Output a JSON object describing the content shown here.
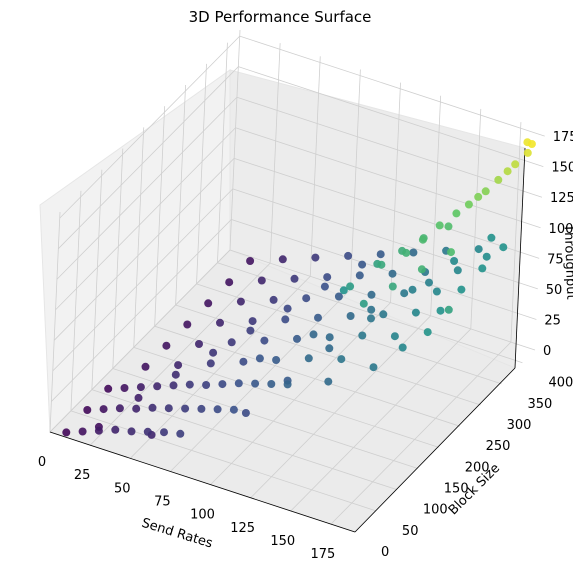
{
  "chart_data": {
    "type": "scatter",
    "projection": "3d",
    "title": "3D Performance Surface",
    "xlabel": "Send Rates",
    "ylabel": "Block Size",
    "zlabel": "Throughput",
    "xlim": [
      0,
      190
    ],
    "ylim": [
      0,
      430
    ],
    "zlim": [
      0,
      180
    ],
    "xticks": [
      "0",
      "25",
      "50",
      "75",
      "100",
      "125",
      "150",
      "175"
    ],
    "yticks": [
      "0",
      "50",
      "100",
      "150",
      "200",
      "250",
      "300",
      "350",
      "400"
    ],
    "zticks": [
      "0",
      "25",
      "50",
      "75",
      "100",
      "125",
      "150",
      "175"
    ],
    "colormap": "viridis",
    "color_by": "Throughput",
    "grid": true,
    "points": [
      [
        10,
        0,
        4
      ],
      [
        20,
        0,
        9
      ],
      [
        30,
        0,
        14
      ],
      [
        40,
        0,
        19
      ],
      [
        50,
        0,
        22
      ],
      [
        60,
        0,
        26
      ],
      [
        70,
        0,
        30
      ],
      [
        80,
        0,
        33
      ],
      [
        10,
        50,
        5
      ],
      [
        20,
        50,
        10
      ],
      [
        30,
        50,
        15
      ],
      [
        40,
        50,
        19
      ],
      [
        50,
        50,
        24
      ],
      [
        60,
        50,
        28
      ],
      [
        70,
        50,
        32
      ],
      [
        80,
        50,
        36
      ],
      [
        90,
        50,
        40
      ],
      [
        100,
        50,
        44
      ],
      [
        10,
        100,
        5
      ],
      [
        20,
        100,
        10
      ],
      [
        30,
        100,
        15
      ],
      [
        40,
        100,
        20
      ],
      [
        50,
        100,
        25
      ],
      [
        60,
        100,
        30
      ],
      [
        70,
        100,
        34
      ],
      [
        80,
        100,
        39
      ],
      [
        90,
        100,
        44
      ],
      [
        100,
        100,
        48
      ],
      [
        110,
        100,
        52
      ],
      [
        120,
        100,
        56
      ],
      [
        20,
        150,
        10
      ],
      [
        40,
        150,
        20
      ],
      [
        60,
        150,
        30
      ],
      [
        80,
        150,
        40
      ],
      [
        100,
        150,
        50
      ],
      [
        120,
        150,
        60
      ],
      [
        140,
        150,
        68
      ],
      [
        20,
        200,
        10
      ],
      [
        40,
        200,
        20
      ],
      [
        60,
        200,
        30
      ],
      [
        80,
        200,
        40
      ],
      [
        100,
        200,
        50
      ],
      [
        120,
        200,
        60
      ],
      [
        140,
        200,
        70
      ],
      [
        160,
        200,
        78
      ],
      [
        20,
        250,
        10
      ],
      [
        40,
        250,
        20
      ],
      [
        60,
        250,
        30
      ],
      [
        80,
        250,
        40
      ],
      [
        100,
        250,
        50
      ],
      [
        120,
        250,
        60
      ],
      [
        140,
        250,
        70
      ],
      [
        160,
        250,
        80
      ],
      [
        175,
        250,
        88
      ],
      [
        20,
        300,
        10
      ],
      [
        40,
        300,
        20
      ],
      [
        60,
        300,
        30
      ],
      [
        80,
        300,
        40
      ],
      [
        100,
        300,
        50
      ],
      [
        120,
        300,
        60
      ],
      [
        140,
        300,
        70
      ],
      [
        160,
        300,
        80
      ],
      [
        175,
        300,
        88
      ],
      [
        20,
        350,
        10
      ],
      [
        40,
        350,
        20
      ],
      [
        60,
        350,
        30
      ],
      [
        80,
        350,
        40
      ],
      [
        100,
        350,
        50
      ],
      [
        120,
        350,
        60
      ],
      [
        140,
        350,
        70
      ],
      [
        160,
        350,
        80
      ],
      [
        175,
        350,
        88
      ],
      [
        20,
        400,
        10
      ],
      [
        40,
        400,
        20
      ],
      [
        60,
        400,
        30
      ],
      [
        80,
        400,
        40
      ],
      [
        100,
        400,
        50
      ],
      [
        120,
        400,
        60
      ],
      [
        140,
        400,
        70
      ],
      [
        160,
        400,
        80
      ],
      [
        175,
        400,
        88
      ],
      [
        25,
        20,
        8
      ],
      [
        35,
        75,
        17
      ],
      [
        45,
        125,
        23
      ],
      [
        55,
        175,
        28
      ],
      [
        65,
        225,
        33
      ],
      [
        75,
        275,
        38
      ],
      [
        85,
        325,
        43
      ],
      [
        95,
        375,
        48
      ],
      [
        105,
        60,
        40
      ],
      [
        115,
        120,
        50
      ],
      [
        125,
        180,
        60
      ],
      [
        135,
        240,
        68
      ],
      [
        145,
        300,
        75
      ],
      [
        155,
        360,
        82
      ],
      [
        165,
        410,
        88
      ],
      [
        90,
        150,
        47
      ],
      [
        110,
        200,
        58
      ],
      [
        130,
        260,
        66
      ],
      [
        150,
        320,
        76
      ],
      [
        170,
        380,
        85
      ],
      [
        125,
        225,
        95
      ],
      [
        135,
        260,
        105
      ],
      [
        145,
        280,
        112
      ],
      [
        150,
        300,
        118
      ],
      [
        155,
        320,
        125
      ],
      [
        160,
        340,
        130
      ],
      [
        165,
        350,
        136
      ],
      [
        170,
        370,
        142
      ],
      [
        175,
        380,
        150
      ],
      [
        180,
        400,
        158
      ],
      [
        185,
        410,
        166
      ],
      [
        182,
        420,
        170
      ],
      [
        120,
        230,
        88
      ],
      [
        130,
        270,
        100
      ],
      [
        140,
        290,
        108
      ],
      [
        148,
        310,
        115
      ],
      [
        158,
        330,
        122
      ],
      [
        168,
        360,
        140
      ],
      [
        178,
        390,
        155
      ],
      [
        186,
        415,
        172
      ],
      [
        140,
        200,
        96
      ],
      [
        150,
        230,
        104
      ],
      [
        160,
        260,
        112
      ],
      [
        170,
        290,
        120
      ],
      [
        60,
        10,
        20
      ],
      [
        140,
        120,
        60
      ],
      [
        160,
        150,
        70
      ],
      [
        170,
        180,
        80
      ],
      [
        180,
        200,
        90
      ],
      [
        185,
        230,
        100
      ]
    ]
  }
}
